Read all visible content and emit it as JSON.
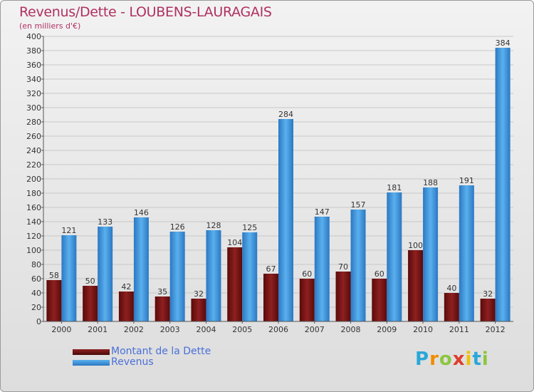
{
  "chart_data": {
    "type": "bar",
    "title": "Revenus/Dette - LOUBENS-LAURAGAIS",
    "subtitle": "(en milliers d'€)",
    "categories": [
      "2000",
      "2001",
      "2002",
      "2003",
      "2004",
      "2005",
      "2006",
      "2007",
      "2008",
      "2009",
      "2010",
      "2011",
      "2012"
    ],
    "series": [
      {
        "name": "Montant de la Dette",
        "values": [
          58,
          50,
          42,
          35,
          32,
          104,
          67,
          60,
          70,
          60,
          100,
          40,
          32
        ],
        "color": "#7a1414"
      },
      {
        "name": "Revenus",
        "values": [
          121,
          133,
          146,
          126,
          128,
          125,
          284,
          147,
          157,
          181,
          188,
          191,
          384
        ],
        "color": "#3c96dc"
      }
    ],
    "ylim": [
      0,
      400
    ],
    "ytick_step": 20,
    "grid": true,
    "legend_position": "bottom-left"
  },
  "logo": {
    "text": "Proxiti",
    "letters": [
      "P",
      "r",
      "o",
      "x",
      "i",
      "t",
      "i"
    ],
    "colors": [
      "#2aa7d8",
      "#f08c00",
      "#8cc63f",
      "#e03b2a",
      "#f0c000",
      "#2aa7d8",
      "#8cc63f"
    ]
  }
}
